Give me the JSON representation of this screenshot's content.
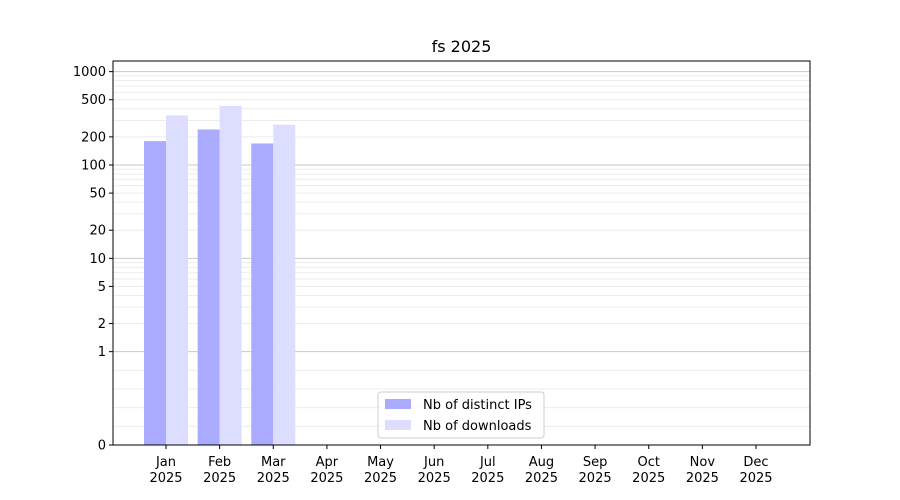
{
  "chart_data": {
    "type": "bar",
    "title": "fs 2025",
    "xlabel": "",
    "ylabel": "",
    "yscale": "symlog",
    "ylim": [
      0,
      1300
    ],
    "yticks": [
      0,
      1,
      2,
      5,
      10,
      20,
      50,
      100,
      200,
      500,
      1000
    ],
    "ytick_labels": [
      "0",
      "1",
      "2",
      "5",
      "10",
      "20",
      "50",
      "100",
      "200",
      "500",
      "1000"
    ],
    "grid": "horizontal (major and minor)",
    "legend_position": "bottom-center",
    "categories": [
      {
        "month": "Jan",
        "year": "2025"
      },
      {
        "month": "Feb",
        "year": "2025"
      },
      {
        "month": "Mar",
        "year": "2025"
      },
      {
        "month": "Apr",
        "year": "2025"
      },
      {
        "month": "May",
        "year": "2025"
      },
      {
        "month": "Jun",
        "year": "2025"
      },
      {
        "month": "Jul",
        "year": "2025"
      },
      {
        "month": "Aug",
        "year": "2025"
      },
      {
        "month": "Sep",
        "year": "2025"
      },
      {
        "month": "Oct",
        "year": "2025"
      },
      {
        "month": "Nov",
        "year": "2025"
      },
      {
        "month": "Dec",
        "year": "2025"
      }
    ],
    "series": [
      {
        "name": "Nb of distinct IPs",
        "color": "#aaaaff",
        "values": [
          180,
          240,
          170,
          null,
          null,
          null,
          null,
          null,
          null,
          null,
          null,
          null
        ]
      },
      {
        "name": "Nb of downloads",
        "color": "#ddddff",
        "values": [
          340,
          430,
          270,
          null,
          null,
          null,
          null,
          null,
          null,
          null,
          null,
          null
        ]
      }
    ]
  }
}
